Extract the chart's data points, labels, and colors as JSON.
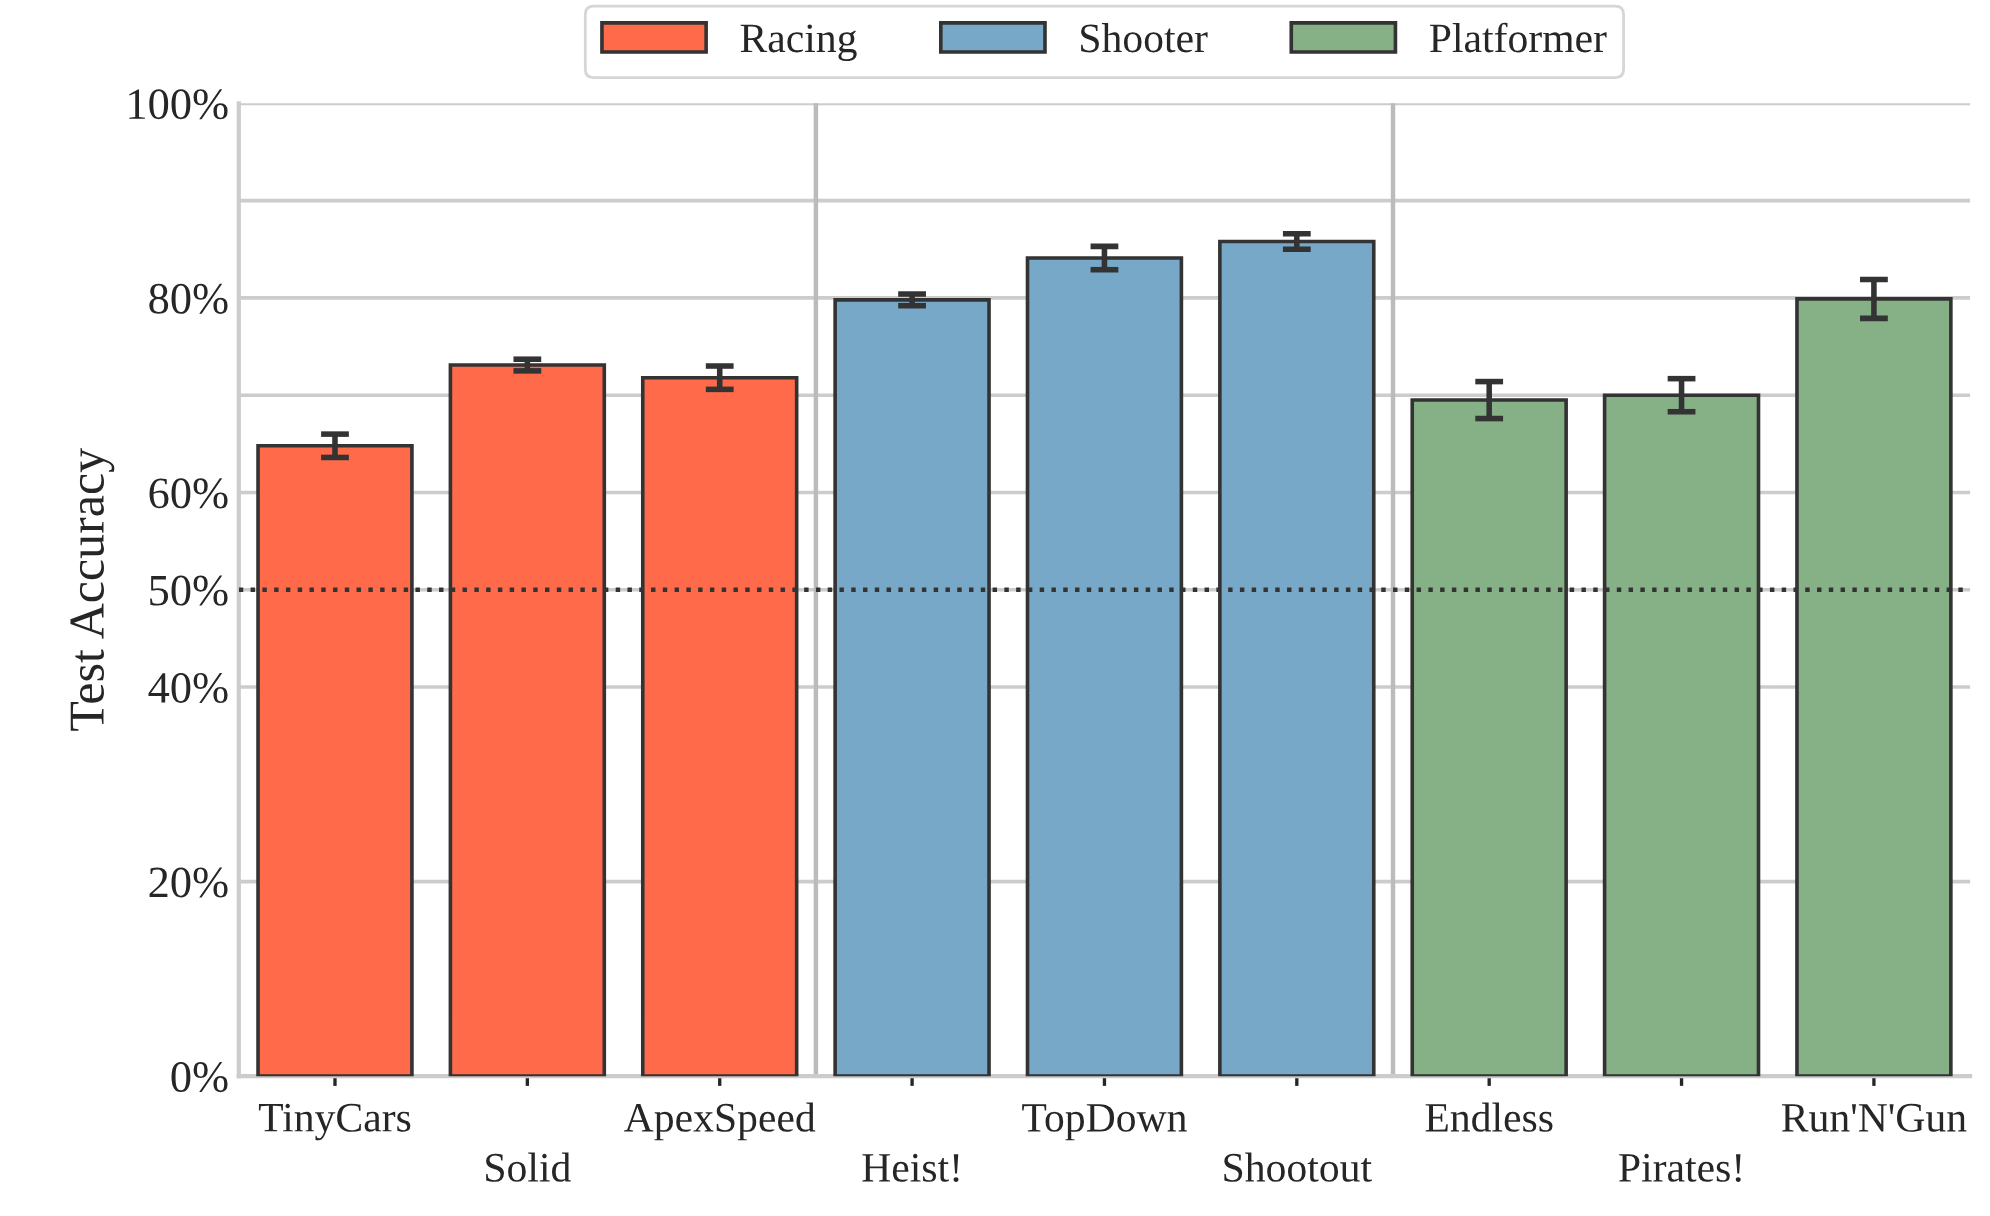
{
  "chart_data": {
    "type": "bar",
    "ylabel": "Test Accuracy",
    "categories": [
      "TinyCars",
      "Solid",
      "ApexSpeed",
      "Heist!",
      "TopDown",
      "Shootout",
      "Endless",
      "Pirates!",
      "Run'N'Gun"
    ],
    "series": [
      {
        "name": "Racing",
        "color": "#fe6a4a",
        "values": [
          64.8,
          73.1,
          71.8,
          null,
          null,
          null,
          null,
          null,
          null
        ],
        "errors": [
          1.2,
          0.6,
          1.2,
          null,
          null,
          null,
          null,
          null,
          null
        ]
      },
      {
        "name": "Shooter",
        "color": "#77a8c8",
        "values": [
          null,
          null,
          null,
          79.8,
          84.1,
          85.8,
          null,
          null,
          null
        ],
        "errors": [
          null,
          null,
          null,
          0.6,
          1.2,
          0.8,
          null,
          null,
          null
        ]
      },
      {
        "name": "Platformer",
        "color": "#86b086",
        "values": [
          null,
          null,
          null,
          null,
          null,
          null,
          69.5,
          70.0,
          79.9
        ],
        "errors": [
          null,
          null,
          null,
          null,
          null,
          null,
          1.9,
          1.7,
          2.0
        ]
      }
    ],
    "ylim": [
      0,
      100
    ],
    "yticks": [
      {
        "value": 0,
        "label": "0%"
      },
      {
        "value": 20,
        "label": "20%"
      },
      {
        "value": 40,
        "label": "40%"
      },
      {
        "value": 50,
        "label": "50%"
      },
      {
        "value": 60,
        "label": "60%"
      },
      {
        "value": 70,
        "label": null
      },
      {
        "value": 80,
        "label": "80%"
      },
      {
        "value": 90,
        "label": null
      },
      {
        "value": 100,
        "label": "100%"
      }
    ],
    "ref_lines": [
      {
        "axis": "y",
        "value": 50,
        "color": "#333333",
        "line_style": "dotted"
      }
    ],
    "grid": "y",
    "legend": "top"
  }
}
